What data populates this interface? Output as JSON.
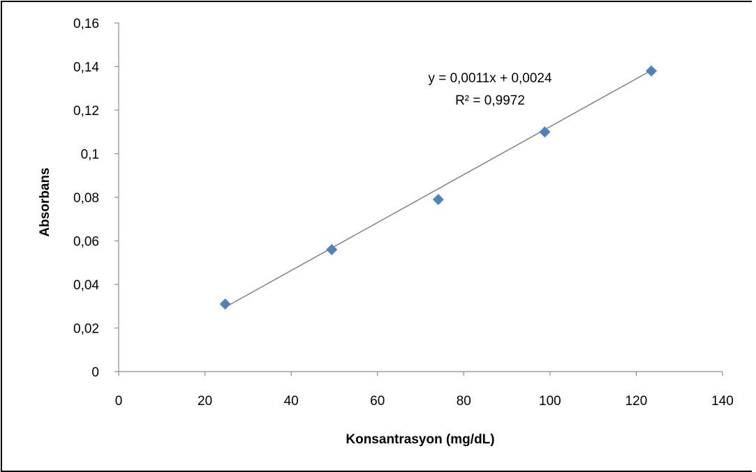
{
  "chart_data": {
    "type": "scatter",
    "title": "",
    "xlabel": "Konsantrasyon (mg/dL)",
    "ylabel": "Absorbans",
    "xlim": [
      0,
      140
    ],
    "ylim": [
      0,
      0.16
    ],
    "x_ticks": [
      0,
      20,
      40,
      60,
      80,
      100,
      120,
      140
    ],
    "x_tick_labels": [
      "0",
      "20",
      "40",
      "60",
      "80",
      "100",
      "120",
      "140"
    ],
    "y_ticks": [
      0,
      0.02,
      0.04,
      0.06,
      0.08,
      0.1,
      0.12,
      0.14,
      0.16
    ],
    "y_tick_labels": [
      "0",
      "0,02",
      "0,04",
      "0,06",
      "0,08",
      "0,1",
      "0,12",
      "0,14",
      "0,16"
    ],
    "grid": false,
    "series": [
      {
        "marker": "diamond",
        "color": "#4f81bd",
        "x": [
          24.7,
          49.4,
          74.1,
          98.8,
          123.5
        ],
        "y": [
          0.031,
          0.056,
          0.079,
          0.11,
          0.138
        ]
      }
    ],
    "trendline": {
      "type": "linear",
      "slope": 0.0011,
      "intercept": 0.0024,
      "x_range": [
        24.7,
        123.5
      ],
      "color": "#808080"
    },
    "annotations": {
      "equation": "y = 0,0011x + 0,0024",
      "r_squared": "R² = 0,9972"
    }
  }
}
